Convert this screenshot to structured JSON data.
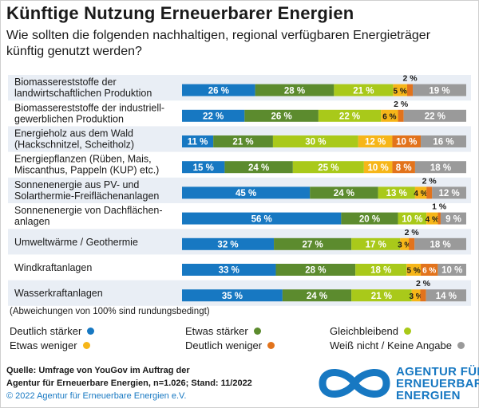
{
  "title": "Künftige Nutzung Erneuerbarer Energien",
  "subtitle": "Wie sollten die folgenden nachhaltigen, regional verfügbaren Energieträger künftig genutzt werden?",
  "note": "(Abweichungen von 100% sind rundungsbedingt)",
  "source_line1": "Quelle: Umfrage von YouGov im Auftrag der",
  "source_line2": "Agentur für Erneuerbare Energien, n=1.026; Stand: 11/2022",
  "copyright": "© 2022 Agentur für Erneuerbare Energien e.V.",
  "logo": {
    "line1": "AGENTUR FÜR",
    "line2": "ERNEUERBARE",
    "line3": "ENERGIEN",
    "icon": "infinity-logo-icon"
  },
  "colors": {
    "deutlich_staerker": "#1778c2",
    "etwas_staerker": "#5c8b2e",
    "gleichbleibend": "#a9c91a",
    "etwas_weniger": "#f6b619",
    "deutlich_weniger": "#e2731c",
    "weiss_nicht": "#9a9a9a",
    "row_alt": "#e9eef5",
    "brand": "#1778c2"
  },
  "chart_data": {
    "type": "bar",
    "orientation": "horizontal",
    "stacked": true,
    "unit": "%",
    "categories": [
      [
        "Biomassereststoffe der",
        "landwirtschaftlichen Produktion"
      ],
      [
        "Biomassereststoffe der industriell-",
        "gewerblichen Produktion"
      ],
      [
        "Energieholz aus dem Wald",
        "(Hackschnitzel, Scheitholz)"
      ],
      [
        "Energiepflanzen (Rüben, Mais,",
        "Miscanthus, Pappeln (KUP) etc.)"
      ],
      [
        "Sonnenenergie aus PV- und",
        "Solarthermie-Freiflächenanlagen"
      ],
      [
        "Sonnenenergie von Dachflächen-",
        "anlagen"
      ],
      [
        "Umweltwärme / Geothermie"
      ],
      [
        "Windkraftanlagen"
      ],
      [
        "Wasserkraftanlagen"
      ]
    ],
    "series": [
      {
        "name": "Deutlich stärker",
        "values": [
          26,
          22,
          11,
          15,
          45,
          56,
          32,
          33,
          35
        ]
      },
      {
        "name": "Etwas stärker",
        "values": [
          28,
          26,
          21,
          24,
          24,
          20,
          27,
          28,
          24
        ]
      },
      {
        "name": "Gleichbleibend",
        "values": [
          21,
          22,
          30,
          25,
          13,
          10,
          17,
          18,
          21
        ]
      },
      {
        "name": "Etwas weniger",
        "values": [
          5,
          6,
          12,
          10,
          4,
          4,
          3,
          5,
          3
        ]
      },
      {
        "name": "Deutlich weniger",
        "values": [
          2,
          2,
          10,
          8,
          2,
          1,
          2,
          6,
          2
        ]
      },
      {
        "name": "Weiß nicht / Keine Angabe",
        "values": [
          19,
          22,
          16,
          18,
          12,
          9,
          18,
          10,
          14
        ]
      }
    ],
    "outside_labels": [
      {
        "row": 0,
        "series": 4,
        "text": "2 %"
      },
      {
        "row": 1,
        "series": 4,
        "text": "2 %"
      },
      {
        "row": 4,
        "series": 4,
        "text": "2 %"
      },
      {
        "row": 5,
        "series": 4,
        "text": "1 %"
      },
      {
        "row": 6,
        "series": 4,
        "text": "2 %"
      },
      {
        "row": 8,
        "series": 4,
        "text": "2 %"
      }
    ],
    "xlim": [
      0,
      100
    ],
    "legend_position": "bottom"
  }
}
